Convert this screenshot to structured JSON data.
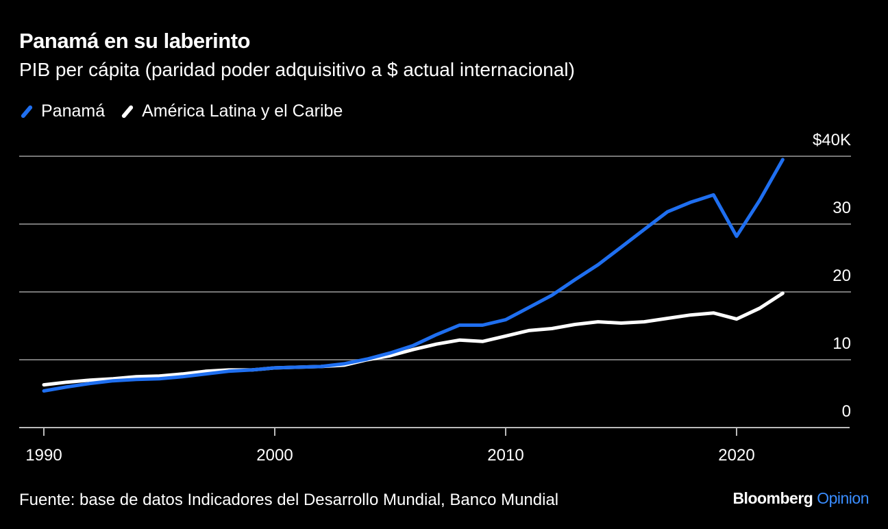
{
  "chart_data": {
    "type": "line",
    "title": "Panamá en su laberinto",
    "subtitle": "PIB per cápita (paridad poder adquisitivo a $ actual internacional)",
    "xlabel": "",
    "ylabel": "",
    "xlim": [
      1989,
      2025
    ],
    "ylim": [
      0,
      40
    ],
    "x_ticks": [
      1990,
      2000,
      2010,
      2020
    ],
    "x_tick_labels": [
      "1990",
      "2000",
      "2010",
      "2020"
    ],
    "y_ticks": [
      0,
      10,
      20,
      30,
      40
    ],
    "y_tick_labels": [
      "0",
      "10",
      "20",
      "30",
      "$40K"
    ],
    "grid": "horizontal",
    "legend_position": "top-left",
    "x": [
      1990,
      1991,
      1992,
      1993,
      1994,
      1995,
      1996,
      1997,
      1998,
      1999,
      2000,
      2001,
      2002,
      2003,
      2004,
      2005,
      2006,
      2007,
      2008,
      2009,
      2010,
      2011,
      2012,
      2013,
      2014,
      2015,
      2016,
      2017,
      2018,
      2019,
      2020,
      2021,
      2022
    ],
    "series": [
      {
        "name": "Panamá",
        "color": "#1f6ff0",
        "values": [
          5.4,
          6.0,
          6.5,
          6.9,
          7.1,
          7.2,
          7.5,
          7.9,
          8.3,
          8.5,
          8.8,
          8.9,
          9.0,
          9.4,
          10.1,
          11.0,
          12.1,
          13.7,
          15.1,
          15.1,
          15.9,
          17.7,
          19.5,
          21.8,
          24.0,
          26.6,
          29.2,
          31.8,
          33.2,
          34.3,
          28.2,
          33.5,
          39.5
        ]
      },
      {
        "name": "América Latina y el Caribe",
        "color": "#ffffff",
        "values": [
          6.3,
          6.7,
          7.0,
          7.2,
          7.5,
          7.6,
          7.9,
          8.3,
          8.5,
          8.5,
          8.8,
          8.9,
          9.0,
          9.2,
          10.0,
          10.6,
          11.5,
          12.3,
          12.9,
          12.7,
          13.5,
          14.3,
          14.6,
          15.2,
          15.6,
          15.4,
          15.6,
          16.1,
          16.6,
          16.9,
          16.0,
          17.6,
          19.8
        ]
      }
    ]
  },
  "source": "Fuente: base de datos Indicadores del Desarrollo Mundial, Banco Mundial",
  "logo": {
    "brand": "Bloomberg",
    "section": "Opinion"
  }
}
